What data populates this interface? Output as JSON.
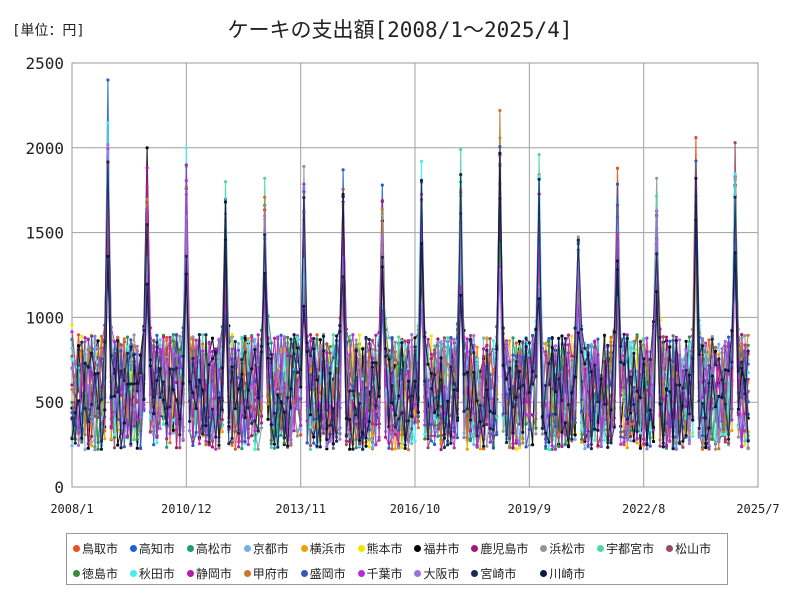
{
  "header": {
    "unit_label": "[単位：円]",
    "title": "ケーキの支出額[2008/1～2025/4]"
  },
  "chart_data": {
    "type": "line",
    "title": "ケーキの支出額[2008/1～2025/4]",
    "unit": "[単位：円]",
    "x_range": [
      "2008/1",
      "2025/4"
    ],
    "x_ticks": [
      "2008/1",
      "2010/12",
      "2013/11",
      "2016/10",
      "2019/9",
      "2022/8",
      "2025/7"
    ],
    "y_ticks": [
      0,
      500,
      1000,
      1500,
      2000,
      2500
    ],
    "ylim": [
      0,
      2500
    ],
    "grid": true,
    "legend_position": "bottom",
    "series": [
      {
        "name": "鳥取市",
        "color": "#e8501c"
      },
      {
        "name": "高知市",
        "color": "#1f5fd6"
      },
      {
        "name": "高松市",
        "color": "#1a9e73"
      },
      {
        "name": "京都市",
        "color": "#6fb3e6"
      },
      {
        "name": "横浜市",
        "color": "#f2a100"
      },
      {
        "name": "熊本市",
        "color": "#f4e200"
      },
      {
        "name": "福井市",
        "color": "#000000"
      },
      {
        "name": "鹿児島市",
        "color": "#a5157a"
      },
      {
        "name": "浜松市",
        "color": "#8c979e"
      },
      {
        "name": "宇都宮市",
        "color": "#4fd7a6"
      },
      {
        "name": "松山市",
        "color": "#9c4b63"
      },
      {
        "name": "徳島市",
        "color": "#3a8a3d"
      },
      {
        "name": "秋田市",
        "color": "#43f0f0"
      },
      {
        "name": "静岡市",
        "color": "#b41ca8"
      },
      {
        "name": "甲府市",
        "color": "#c87830"
      },
      {
        "name": "盛岡市",
        "color": "#3a55b8"
      },
      {
        "name": "千葉市",
        "color": "#b030d8"
      },
      {
        "name": "大阪市",
        "color": "#a070e0"
      },
      {
        "name": "宮崎市",
        "color": "#1a2a55"
      },
      {
        "name": "川崎市",
        "color": "#0a1a3c"
      }
    ],
    "december_peaks": [
      {
        "year": 2008,
        "max": 2400,
        "series": "高知市"
      },
      {
        "year": 2009,
        "max": 2000,
        "series": "福井市"
      },
      {
        "year": 2010,
        "max": 2000,
        "series": "秋田市"
      },
      {
        "year": 2011,
        "max": 1800,
        "series": "宇都宮市"
      },
      {
        "year": 2012,
        "max": 1820,
        "series": "宇都宮市"
      },
      {
        "year": 2013,
        "max": 1890,
        "series": "浜松市"
      },
      {
        "year": 2014,
        "max": 1870,
        "series": "高知市"
      },
      {
        "year": 2015,
        "max": 1780,
        "series": "高知市"
      },
      {
        "year": 2016,
        "max": 1920,
        "series": "秋田市"
      },
      {
        "year": 2017,
        "max": 1990,
        "series": "宇都宮市"
      },
      {
        "year": 2018,
        "max": 2220,
        "series": "甲府市"
      },
      {
        "year": 2019,
        "max": 1960,
        "series": "宇都宮市"
      },
      {
        "year": 2021,
        "max": 1880,
        "series": "鳥取市"
      },
      {
        "year": 2022,
        "max": 1820,
        "series": "浜松市"
      },
      {
        "year": 2023,
        "max": 2060,
        "series": "鳥取市"
      },
      {
        "year": 2024,
        "max": 2030,
        "series": "松山市"
      }
    ],
    "typical_range": [
      200,
      1000
    ]
  }
}
